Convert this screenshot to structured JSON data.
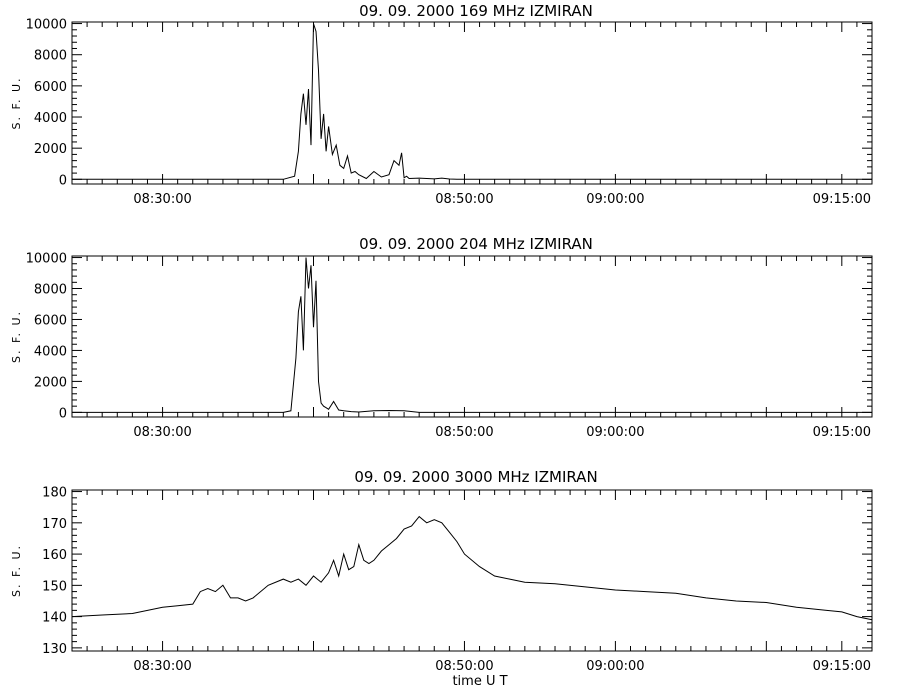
{
  "chart_data": [
    {
      "type": "line",
      "title": "09.  09.  2000    169  MHz    IZMIRAN",
      "ylabel": "S. F. U.",
      "xlabel": "",
      "ylim": [
        -300,
        10100
      ],
      "yticks": [
        0,
        2000,
        4000,
        6000,
        8000,
        10000
      ],
      "xlim": [
        "08:24:00",
        "09:17:00"
      ],
      "xticks": [
        "08:30:00",
        "08:50:00",
        "09:00:00",
        "09:15:00"
      ],
      "series": [
        {
          "x": [
            "08:24:00",
            "08:38:00",
            "08:38:45",
            "08:39:00",
            "08:39:10",
            "08:39:20",
            "08:39:30",
            "08:39:40",
            "08:39:50",
            "08:40:00",
            "08:40:10",
            "08:40:20",
            "08:40:30",
            "08:40:40",
            "08:40:50",
            "08:41:00",
            "08:41:15",
            "08:41:30",
            "08:41:45",
            "08:42:00",
            "08:42:15",
            "08:42:30",
            "08:42:45",
            "08:43:00",
            "08:43:30",
            "08:44:00",
            "08:44:30",
            "08:45:00",
            "08:45:20",
            "08:45:40",
            "08:45:50",
            "08:46:00",
            "08:46:10",
            "08:46:20",
            "08:47:00",
            "08:48:00",
            "08:48:30",
            "08:49:00",
            "08:49:30",
            "09:17:00"
          ],
          "y": [
            0,
            0,
            200,
            1800,
            4200,
            5500,
            3500,
            5800,
            2200,
            10000,
            9500,
            7000,
            2600,
            4200,
            1800,
            3400,
            1600,
            2200,
            900,
            700,
            1500,
            400,
            500,
            300,
            50,
            500,
            150,
            300,
            1200,
            900,
            1700,
            100,
            200,
            50,
            80,
            30,
            80,
            20,
            0,
            0
          ]
        }
      ]
    },
    {
      "type": "line",
      "title": "09.  09.  2000    204  MHz    IZMIRAN",
      "ylabel": "S. F. U.",
      "xlabel": "",
      "ylim": [
        -300,
        10100
      ],
      "yticks": [
        0,
        2000,
        4000,
        6000,
        8000,
        10000
      ],
      "xlim": [
        "08:24:00",
        "09:17:00"
      ],
      "xticks": [
        "08:30:00",
        "08:50:00",
        "09:00:00",
        "09:15:00"
      ],
      "series": [
        {
          "x": [
            "08:24:00",
            "08:38:00",
            "08:38:30",
            "08:38:50",
            "08:39:00",
            "08:39:10",
            "08:39:20",
            "08:39:30",
            "08:39:40",
            "08:39:50",
            "08:40:00",
            "08:40:10",
            "08:40:20",
            "08:40:30",
            "08:40:40",
            "08:40:50",
            "08:41:00",
            "08:41:20",
            "08:41:40",
            "08:42:00",
            "08:42:30",
            "08:43:00",
            "08:44:00",
            "08:45:00",
            "08:46:00",
            "08:47:00",
            "09:17:00"
          ],
          "y": [
            0,
            0,
            100,
            3500,
            6500,
            7500,
            4000,
            10000,
            8000,
            9500,
            5500,
            8500,
            2000,
            600,
            400,
            300,
            200,
            700,
            150,
            100,
            50,
            20,
            100,
            120,
            100,
            0,
            0
          ]
        }
      ]
    },
    {
      "type": "line",
      "title": "09.  09.  2000    3000  MHz    IZMIRAN",
      "ylabel": "S. F. U.",
      "xlabel": "time   U T",
      "ylim": [
        129,
        180.5
      ],
      "yticks": [
        130,
        140,
        150,
        160,
        170,
        180
      ],
      "xlim": [
        "08:24:00",
        "09:17:00"
      ],
      "xticks": [
        "08:30:00",
        "08:50:00",
        "09:00:00",
        "09:15:00"
      ],
      "series": [
        {
          "x": [
            "08:24:00",
            "08:26:00",
            "08:28:00",
            "08:30:00",
            "08:31:00",
            "08:32:00",
            "08:32:30",
            "08:33:00",
            "08:33:30",
            "08:34:00",
            "08:34:30",
            "08:35:00",
            "08:35:30",
            "08:36:00",
            "08:37:00",
            "08:38:00",
            "08:38:30",
            "08:39:00",
            "08:39:30",
            "08:40:00",
            "08:40:30",
            "08:41:00",
            "08:41:20",
            "08:41:40",
            "08:42:00",
            "08:42:20",
            "08:42:40",
            "08:43:00",
            "08:43:20",
            "08:43:40",
            "08:44:00",
            "08:44:30",
            "08:45:00",
            "08:45:30",
            "08:46:00",
            "08:46:30",
            "08:47:00",
            "08:47:30",
            "08:48:00",
            "08:48:30",
            "08:49:00",
            "08:49:30",
            "08:50:00",
            "08:51:00",
            "08:52:00",
            "08:53:00",
            "08:54:00",
            "08:56:00",
            "08:58:00",
            "09:00:00",
            "09:02:00",
            "09:04:00",
            "09:06:00",
            "09:08:00",
            "09:10:00",
            "09:12:00",
            "09:14:00",
            "09:15:00",
            "09:16:00",
            "09:17:00"
          ],
          "y": [
            140,
            140.5,
            141,
            143,
            143.5,
            144,
            148,
            149,
            148,
            150,
            146,
            146,
            145,
            146,
            150,
            152,
            151,
            152,
            150,
            153,
            151,
            154,
            158,
            153,
            160,
            155,
            156,
            163,
            158,
            157,
            158,
            161,
            163,
            165,
            168,
            169,
            172,
            170,
            171,
            170,
            167,
            164,
            160,
            156,
            153,
            152,
            151,
            150.5,
            149.5,
            148.5,
            148,
            147.5,
            146,
            145,
            144.5,
            143,
            142,
            141.5,
            140,
            139
          ]
        }
      ]
    }
  ]
}
